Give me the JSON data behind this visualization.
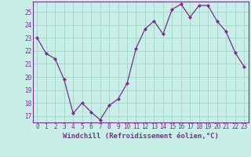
{
  "x": [
    0,
    1,
    2,
    3,
    4,
    5,
    6,
    7,
    8,
    9,
    10,
    11,
    12,
    13,
    14,
    15,
    16,
    17,
    18,
    19,
    20,
    21,
    22,
    23
  ],
  "y": [
    23.0,
    21.8,
    21.4,
    19.8,
    17.2,
    18.0,
    17.3,
    16.7,
    17.8,
    18.3,
    19.5,
    22.2,
    23.7,
    24.3,
    23.3,
    25.2,
    25.6,
    24.6,
    25.5,
    25.5,
    24.3,
    23.5,
    21.9,
    20.8
  ],
  "line_color": "#7B2D8B",
  "marker_color": "#7B2D8B",
  "bg_color": "#C8EEE8",
  "grid_color": "#A8D8CC",
  "xlabel": "Windchill (Refroidissement éolien,°C)",
  "ylim": [
    16.5,
    25.8
  ],
  "xlim": [
    -0.5,
    23.5
  ],
  "yticks": [
    17,
    18,
    19,
    20,
    21,
    22,
    23,
    24,
    25
  ],
  "xticks": [
    0,
    1,
    2,
    3,
    4,
    5,
    6,
    7,
    8,
    9,
    10,
    11,
    12,
    13,
    14,
    15,
    16,
    17,
    18,
    19,
    20,
    21,
    22,
    23
  ],
  "tick_fontsize": 5.5,
  "xlabel_fontsize": 6.5
}
